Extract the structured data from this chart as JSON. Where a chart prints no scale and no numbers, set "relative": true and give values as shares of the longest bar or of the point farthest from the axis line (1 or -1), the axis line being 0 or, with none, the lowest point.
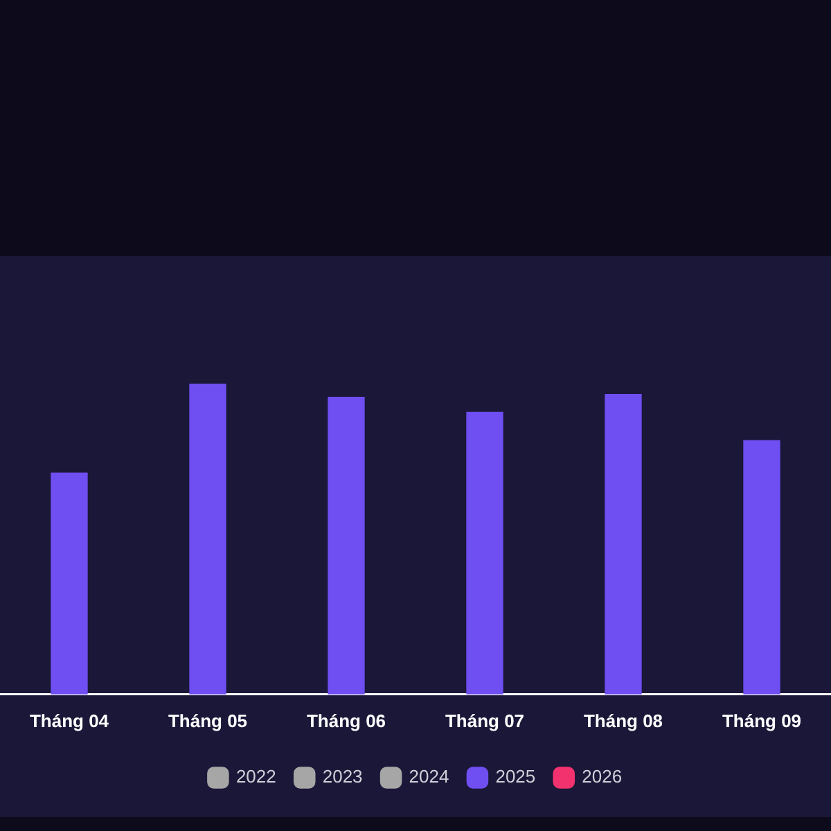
{
  "chart_data": {
    "type": "bar",
    "relative": true,
    "categories": [
      "Tháng 04",
      "Tháng 05",
      "Tháng 06",
      "Tháng 07",
      "Tháng 08",
      "Tháng 09"
    ],
    "series": [
      {
        "name": "2022",
        "color": "#a6a6a6",
        "values": [
          null,
          null,
          null,
          null,
          null,
          null
        ]
      },
      {
        "name": "2023",
        "color": "#a6a6a6",
        "values": [
          null,
          null,
          null,
          null,
          null,
          null
        ]
      },
      {
        "name": "2024",
        "color": "#a6a6a6",
        "values": [
          null,
          null,
          null,
          null,
          null,
          null
        ]
      },
      {
        "name": "2025",
        "color": "#6f4ff2",
        "values": [
          0.712,
          1,
          0.956,
          0.908,
          0.965,
          0.817
        ]
      },
      {
        "name": "2026",
        "color": "#f2326e",
        "values": [
          null,
          null,
          null,
          null,
          null,
          null
        ]
      }
    ],
    "grid": false,
    "legend": "bottom"
  }
}
